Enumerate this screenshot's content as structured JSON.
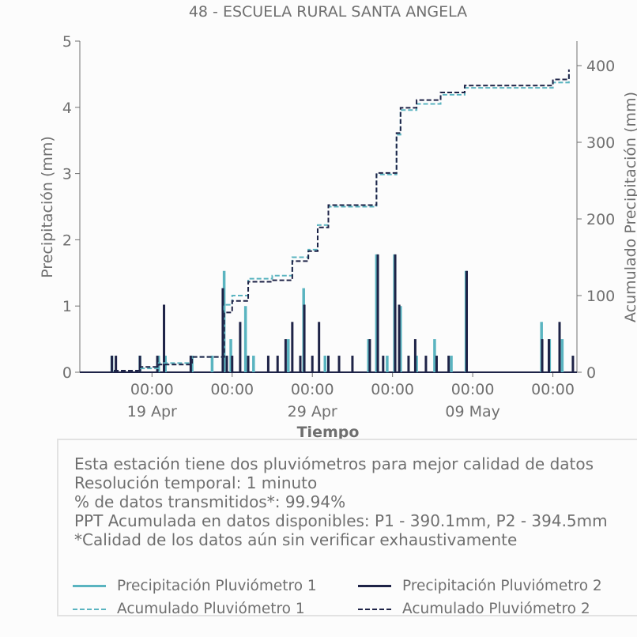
{
  "chart_data": {
    "type": "line",
    "title": "48 - ESCUELA RURAL SANTA ANGELA",
    "xlabel": "Tiempo",
    "ylabel_left": "Precipitación (mm)",
    "ylabel_right": "Acumulado Precipitación (mm)",
    "x_range": [
      "2024-04-14T12:00",
      "2024-05-15T12:00"
    ],
    "ylim_left": [
      0,
      5
    ],
    "ylim_right": [
      0,
      432
    ],
    "x_ticks": [
      {
        "date": "2024-04-19T00:00",
        "label_time": "00:00",
        "label_date": "19 Apr"
      },
      {
        "date": "2024-04-24T00:00",
        "label_time": "00:00",
        "label_date": ""
      },
      {
        "date": "2024-04-29T00:00",
        "label_time": "00:00",
        "label_date": "29 Apr"
      },
      {
        "date": "2024-05-04T00:00",
        "label_time": "00:00",
        "label_date": ""
      },
      {
        "date": "2024-05-09T00:00",
        "label_time": "00:00",
        "label_date": "09 May"
      },
      {
        "date": "2024-05-14T00:00",
        "label_time": "00:00",
        "label_date": ""
      }
    ],
    "y_ticks_left": [
      0,
      1,
      2,
      3,
      4,
      5
    ],
    "y_ticks_right": [
      0,
      100,
      200,
      300,
      400
    ],
    "grid": false,
    "colors": {
      "p1": "#5ab4c0",
      "p2": "#1e2347"
    },
    "series": [
      {
        "name": "Precipitación Pluviómetro 1",
        "axis": "left",
        "style": "bars",
        "points": [
          [
            "2024-04-16T12:00",
            0.25
          ],
          [
            "2024-04-18T06:00",
            0.25
          ],
          [
            "2024-04-19T10:00",
            0.25
          ],
          [
            "2024-04-19T20:00",
            0.25
          ],
          [
            "2024-04-21T12:00",
            0.25
          ],
          [
            "2024-04-22T18:00",
            0.25
          ],
          [
            "2024-04-23T12:00",
            1.53
          ],
          [
            "2024-04-23T22:00",
            0.5
          ],
          [
            "2024-04-24T20:00",
            1.0
          ],
          [
            "2024-04-25T08:00",
            0.25
          ],
          [
            "2024-04-27T12:00",
            0.5
          ],
          [
            "2024-04-28T11:00",
            1.27
          ],
          [
            "2024-04-29T19:00",
            0.25
          ],
          [
            "2024-05-02T12:00",
            0.5
          ],
          [
            "2024-05-03T00:00",
            1.78
          ],
          [
            "2024-05-03T16:00",
            0.25
          ],
          [
            "2024-05-04T03:00",
            1.78
          ],
          [
            "2024-05-04T12:00",
            1.0
          ],
          [
            "2024-05-05T12:00",
            0.25
          ],
          [
            "2024-05-06T15:00",
            0.5
          ],
          [
            "2024-05-07T16:00",
            0.25
          ],
          [
            "2024-05-08T14:00",
            1.53
          ],
          [
            "2024-05-13T07:00",
            0.76
          ],
          [
            "2024-05-13T19:00",
            0.5
          ],
          [
            "2024-05-14T14:00",
            0.5
          ]
        ]
      },
      {
        "name": "Precipitación Pluviómetro 2",
        "axis": "left",
        "style": "bars",
        "points": [
          [
            "2024-04-16T12:00",
            0.25
          ],
          [
            "2024-04-16T18:00",
            0.25
          ],
          [
            "2024-04-18T06:00",
            0.25
          ],
          [
            "2024-04-19T08:00",
            0.25
          ],
          [
            "2024-04-19T18:00",
            1.02
          ],
          [
            "2024-04-21T10:00",
            0.25
          ],
          [
            "2024-04-23T10:00",
            1.27
          ],
          [
            "2024-04-23T16:00",
            0.25
          ],
          [
            "2024-04-24T00:00",
            0.25
          ],
          [
            "2024-04-24T12:00",
            0.76
          ],
          [
            "2024-04-25T00:00",
            0.25
          ],
          [
            "2024-04-26T06:00",
            0.25
          ],
          [
            "2024-04-26T20:00",
            0.25
          ],
          [
            "2024-04-27T08:00",
            0.5
          ],
          [
            "2024-04-27T18:00",
            0.76
          ],
          [
            "2024-04-28T06:00",
            0.25
          ],
          [
            "2024-04-28T12:00",
            1.02
          ],
          [
            "2024-04-29T00:00",
            0.25
          ],
          [
            "2024-04-29T10:00",
            0.76
          ],
          [
            "2024-04-30T00:00",
            0.25
          ],
          [
            "2024-04-30T16:00",
            0.25
          ],
          [
            "2024-05-01T12:00",
            0.25
          ],
          [
            "2024-05-02T14:00",
            0.5
          ],
          [
            "2024-05-03T02:00",
            1.78
          ],
          [
            "2024-05-03T10:00",
            0.25
          ],
          [
            "2024-05-04T04:00",
            1.78
          ],
          [
            "2024-05-04T10:00",
            1.02
          ],
          [
            "2024-05-05T00:00",
            0.25
          ],
          [
            "2024-05-05T10:00",
            0.5
          ],
          [
            "2024-05-06T02:00",
            0.25
          ],
          [
            "2024-05-06T18:00",
            0.25
          ],
          [
            "2024-05-07T12:00",
            0.25
          ],
          [
            "2024-05-08T15:00",
            1.53
          ],
          [
            "2024-05-13T08:00",
            0.5
          ],
          [
            "2024-05-13T18:00",
            0.5
          ],
          [
            "2024-05-14T10:00",
            0.76
          ],
          [
            "2024-05-15T06:00",
            0.25
          ]
        ]
      },
      {
        "name": "Acumulado Pluviómetro 1",
        "axis": "right",
        "style": "dashed-step",
        "points": [
          [
            "2024-04-14T12:00",
            0
          ],
          [
            "2024-04-16T12:00",
            2
          ],
          [
            "2024-04-18T06:00",
            5
          ],
          [
            "2024-04-19T10:00",
            12
          ],
          [
            "2024-04-21T12:00",
            20
          ],
          [
            "2024-04-23T12:00",
            20
          ],
          [
            "2024-04-23T12:00",
            88
          ],
          [
            "2024-04-24T00:00",
            100
          ],
          [
            "2024-04-25T00:00",
            122
          ],
          [
            "2024-04-26T12:00",
            126
          ],
          [
            "2024-04-27T18:00",
            150
          ],
          [
            "2024-04-28T18:00",
            160
          ],
          [
            "2024-04-29T08:00",
            192
          ],
          [
            "2024-04-30T00:00",
            216
          ],
          [
            "2024-05-03T00:00",
            218
          ],
          [
            "2024-05-03T00:00",
            258
          ],
          [
            "2024-05-04T00:00",
            258
          ],
          [
            "2024-05-04T06:00",
            310
          ],
          [
            "2024-05-04T12:00",
            342
          ],
          [
            "2024-05-05T12:00",
            350
          ],
          [
            "2024-05-07T00:00",
            362
          ],
          [
            "2024-05-08T12:00",
            371
          ],
          [
            "2024-05-13T06:00",
            371
          ],
          [
            "2024-05-14T00:00",
            378
          ],
          [
            "2024-05-15T00:00",
            390
          ]
        ]
      },
      {
        "name": "Acumulado Pluviómetro 2",
        "axis": "right",
        "style": "dashed-step",
        "points": [
          [
            "2024-04-14T12:00",
            0
          ],
          [
            "2024-04-16T12:00",
            2
          ],
          [
            "2024-04-18T06:00",
            7
          ],
          [
            "2024-04-19T10:00",
            10
          ],
          [
            "2024-04-21T12:00",
            20
          ],
          [
            "2024-04-23T12:00",
            22
          ],
          [
            "2024-04-23T12:00",
            78
          ],
          [
            "2024-04-24T00:00",
            93
          ],
          [
            "2024-04-25T00:00",
            118
          ],
          [
            "2024-04-26T12:00",
            120
          ],
          [
            "2024-04-27T18:00",
            145
          ],
          [
            "2024-04-28T18:00",
            158
          ],
          [
            "2024-04-29T08:00",
            189
          ],
          [
            "2024-04-30T00:00",
            218
          ],
          [
            "2024-05-03T00:00",
            220
          ],
          [
            "2024-05-03T00:00",
            260
          ],
          [
            "2024-05-04T00:00",
            260
          ],
          [
            "2024-05-04T06:00",
            312
          ],
          [
            "2024-05-04T12:00",
            345
          ],
          [
            "2024-05-05T12:00",
            355
          ],
          [
            "2024-05-07T00:00",
            365
          ],
          [
            "2024-05-08T12:00",
            374
          ],
          [
            "2024-05-13T06:00",
            374
          ],
          [
            "2024-05-14T00:00",
            382
          ],
          [
            "2024-05-15T00:00",
            395
          ]
        ]
      }
    ]
  },
  "info": {
    "lines": [
      "Esta estación tiene dos pluviómetros para mejor calidad de datos",
      "Resolución temporal: 1 minuto",
      "% de datos transmitidos*: 99.94%",
      "PPT Acumulada en datos disponibles: P1 - 390.1mm, P2 - 394.5mm",
      "*Calidad de los datos aún sin verificar exhaustivamente"
    ]
  },
  "legend": [
    {
      "label": "Precipitación Pluviómetro 1",
      "color": "#5ab4c0",
      "style": "solid"
    },
    {
      "label": "Precipitación Pluviómetro 2",
      "color": "#1e2347",
      "style": "solid"
    },
    {
      "label": "Acumulado Pluviómetro 1",
      "color": "#5ab4c0",
      "style": "dashed"
    },
    {
      "label": "Acumulado Pluviómetro 2",
      "color": "#1e2347",
      "style": "dashed"
    }
  ]
}
